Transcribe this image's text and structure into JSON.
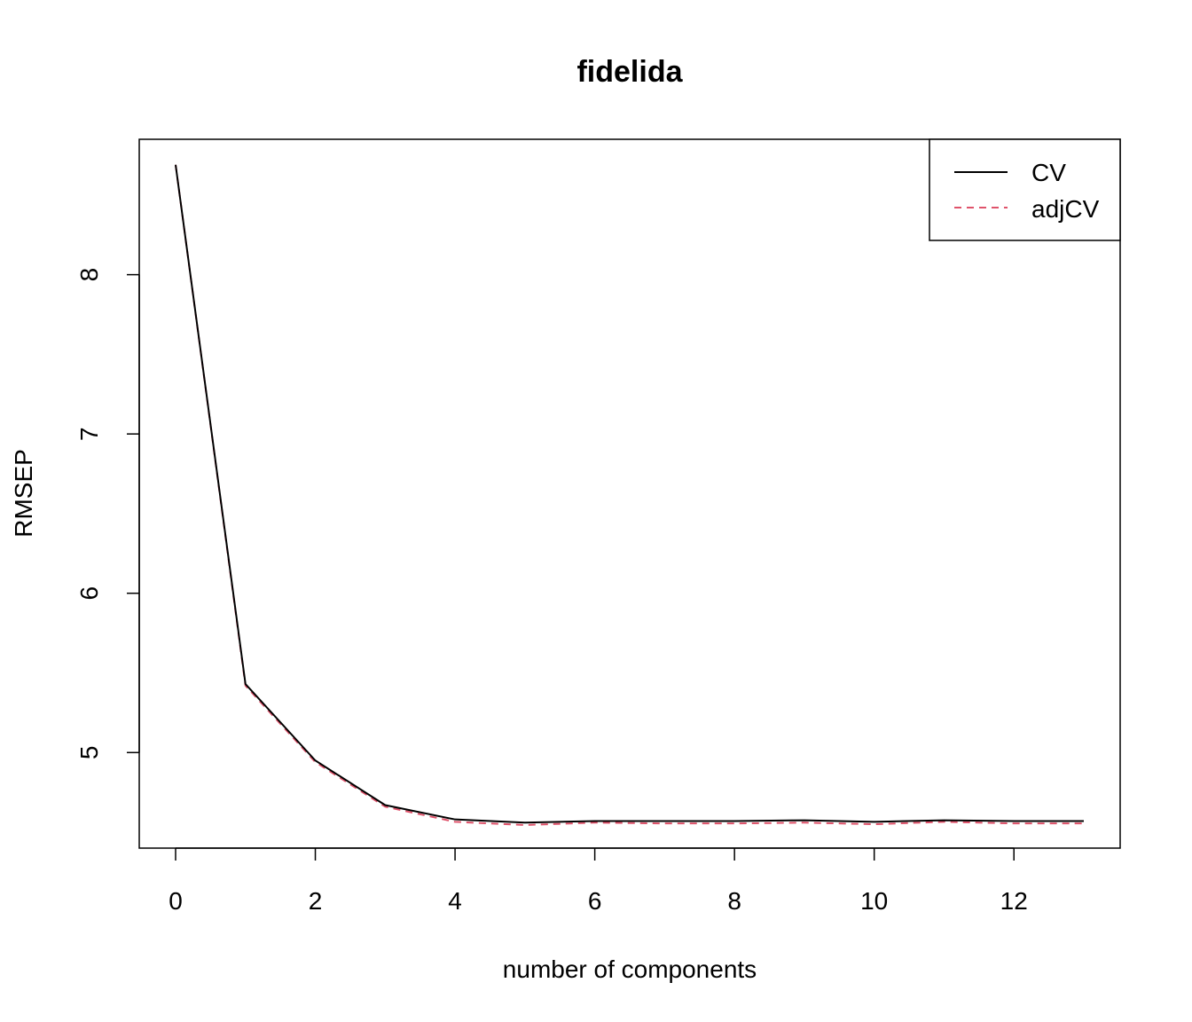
{
  "chart_data": {
    "type": "line",
    "title": "fidelida",
    "xlabel": "number of components",
    "ylabel": "RMSEP",
    "xlim": [
      0,
      13
    ],
    "ylim": [
      4.4,
      8.85
    ],
    "x_ticks": [
      "0",
      "2",
      "4",
      "6",
      "8",
      "10",
      "12"
    ],
    "y_ticks": [
      "5",
      "6",
      "7",
      "8"
    ],
    "legend_position": "top-right",
    "x": [
      0,
      1,
      2,
      3,
      4,
      5,
      6,
      7,
      8,
      9,
      10,
      11,
      12,
      13
    ],
    "series": [
      {
        "name": "CV",
        "color": "#000000",
        "line_style": "solid",
        "values": [
          8.69,
          5.43,
          4.95,
          4.67,
          4.58,
          4.56,
          4.57,
          4.57,
          4.57,
          4.575,
          4.565,
          4.575,
          4.57,
          4.57
        ]
      },
      {
        "name": "adjCV",
        "color": "#DF536B",
        "line_style": "dashed",
        "values": [
          8.69,
          5.42,
          4.94,
          4.66,
          4.565,
          4.545,
          4.56,
          4.555,
          4.555,
          4.56,
          4.55,
          4.565,
          4.555,
          4.555
        ]
      }
    ]
  }
}
